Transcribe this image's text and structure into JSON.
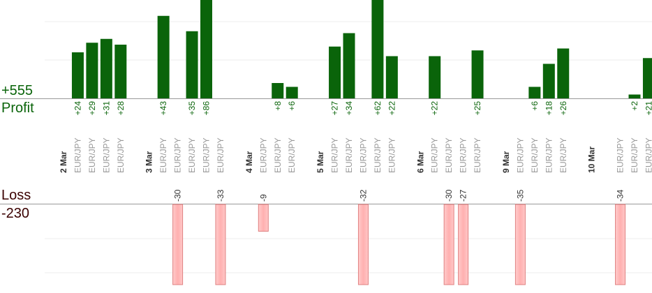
{
  "chart_data": {
    "type": "bar",
    "colors": {
      "profit": "#0a640a",
      "loss": "#ffb3b3",
      "loss_border": "#e08080"
    },
    "profit": {
      "label": "Profit",
      "total": "+555"
    },
    "loss": {
      "label": "Loss",
      "total": "-230"
    },
    "columns": [
      {
        "category": "2 Mar",
        "group": true
      },
      {
        "category": "EUR/JPY",
        "profit": 24
      },
      {
        "category": "EUR/JPY",
        "profit": 29
      },
      {
        "category": "EUR/JPY",
        "profit": 31
      },
      {
        "category": "EUR/JPY",
        "profit": 28
      },
      {
        "category": "",
        "group": true
      },
      {
        "category": "3 Mar",
        "group": true
      },
      {
        "category": "EUR/JPY",
        "profit": 43
      },
      {
        "category": "EUR/JPY",
        "loss": -30
      },
      {
        "category": "EUR/JPY",
        "profit": 35
      },
      {
        "category": "EUR/JPY",
        "profit": 86
      },
      {
        "category": "EUR/JPY",
        "loss": -33
      },
      {
        "category": "",
        "group": true
      },
      {
        "category": "4 Mar",
        "group": true
      },
      {
        "category": "EUR/JPY",
        "loss": -9
      },
      {
        "category": "EUR/JPY",
        "profit": 8
      },
      {
        "category": "EUR/JPY",
        "profit": 6
      },
      {
        "category": "",
        "group": true
      },
      {
        "category": "5 Mar",
        "group": true
      },
      {
        "category": "EUR/JPY",
        "profit": 27
      },
      {
        "category": "EUR/JPY",
        "profit": 34
      },
      {
        "category": "EUR/JPY",
        "loss": -32
      },
      {
        "category": "EUR/JPY",
        "profit": 62
      },
      {
        "category": "EUR/JPY",
        "profit": 22
      },
      {
        "category": "",
        "group": true
      },
      {
        "category": "6 Mar",
        "group": true
      },
      {
        "category": "EUR/JPY",
        "profit": 22
      },
      {
        "category": "EUR/JPY",
        "loss": -30
      },
      {
        "category": "EUR/JPY",
        "loss": -27
      },
      {
        "category": "EUR/JPY",
        "profit": 25
      },
      {
        "category": "",
        "group": true
      },
      {
        "category": "9 Mar",
        "group": true
      },
      {
        "category": "EUR/JPY",
        "loss": -35
      },
      {
        "category": "EUR/JPY",
        "profit": 6
      },
      {
        "category": "EUR/JPY",
        "profit": 18
      },
      {
        "category": "EUR/JPY",
        "profit": 26
      },
      {
        "category": "",
        "group": true
      },
      {
        "category": "10 Mar",
        "group": true
      },
      {
        "category": "",
        "group": true
      },
      {
        "category": "EUR/JPY",
        "loss": -34
      },
      {
        "category": "EUR/JPY",
        "profit": 2
      },
      {
        "category": "EUR/JPY",
        "profit": 21
      }
    ]
  }
}
